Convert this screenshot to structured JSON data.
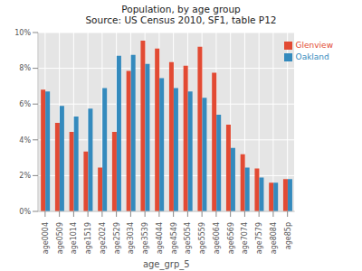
{
  "chart_data": {
    "type": "bar",
    "title": "Population, by age group",
    "subtitle": "Source: US Census 2010, SF1, table P12",
    "x_label": "age_grp_5",
    "categories": [
      "age0004",
      "age0509",
      "age1014",
      "age1519",
      "age2024",
      "age2529",
      "age3034",
      "age3539",
      "age4044",
      "age4549",
      "age5054",
      "age5559",
      "age6064",
      "age6569",
      "age7074",
      "age7579",
      "age8084",
      "age85p"
    ],
    "series": [
      {
        "name": "Glenview",
        "color": "#e24a33",
        "values": [
          6.8,
          4.95,
          4.45,
          3.35,
          2.45,
          4.45,
          7.85,
          9.55,
          9.1,
          8.35,
          8.15,
          9.2,
          7.75,
          4.85,
          3.2,
          2.4,
          1.6,
          1.8
        ]
      },
      {
        "name": "Oakland",
        "color": "#348abd",
        "values": [
          6.7,
          5.9,
          5.3,
          5.75,
          6.9,
          8.7,
          8.75,
          8.25,
          7.45,
          6.9,
          6.7,
          6.35,
          5.4,
          3.55,
          2.45,
          1.9,
          1.6,
          1.8
        ]
      }
    ],
    "ylim": [
      0,
      10
    ],
    "yticks": [
      {
        "value": 0,
        "label": "0%"
      },
      {
        "value": 2,
        "label": "2%"
      },
      {
        "value": 4,
        "label": "4%"
      },
      {
        "value": 6,
        "label": "6%"
      },
      {
        "value": 8,
        "label": "8%"
      },
      {
        "value": 10,
        "label": "10%"
      }
    ],
    "grid": true,
    "legend": "upper right"
  }
}
